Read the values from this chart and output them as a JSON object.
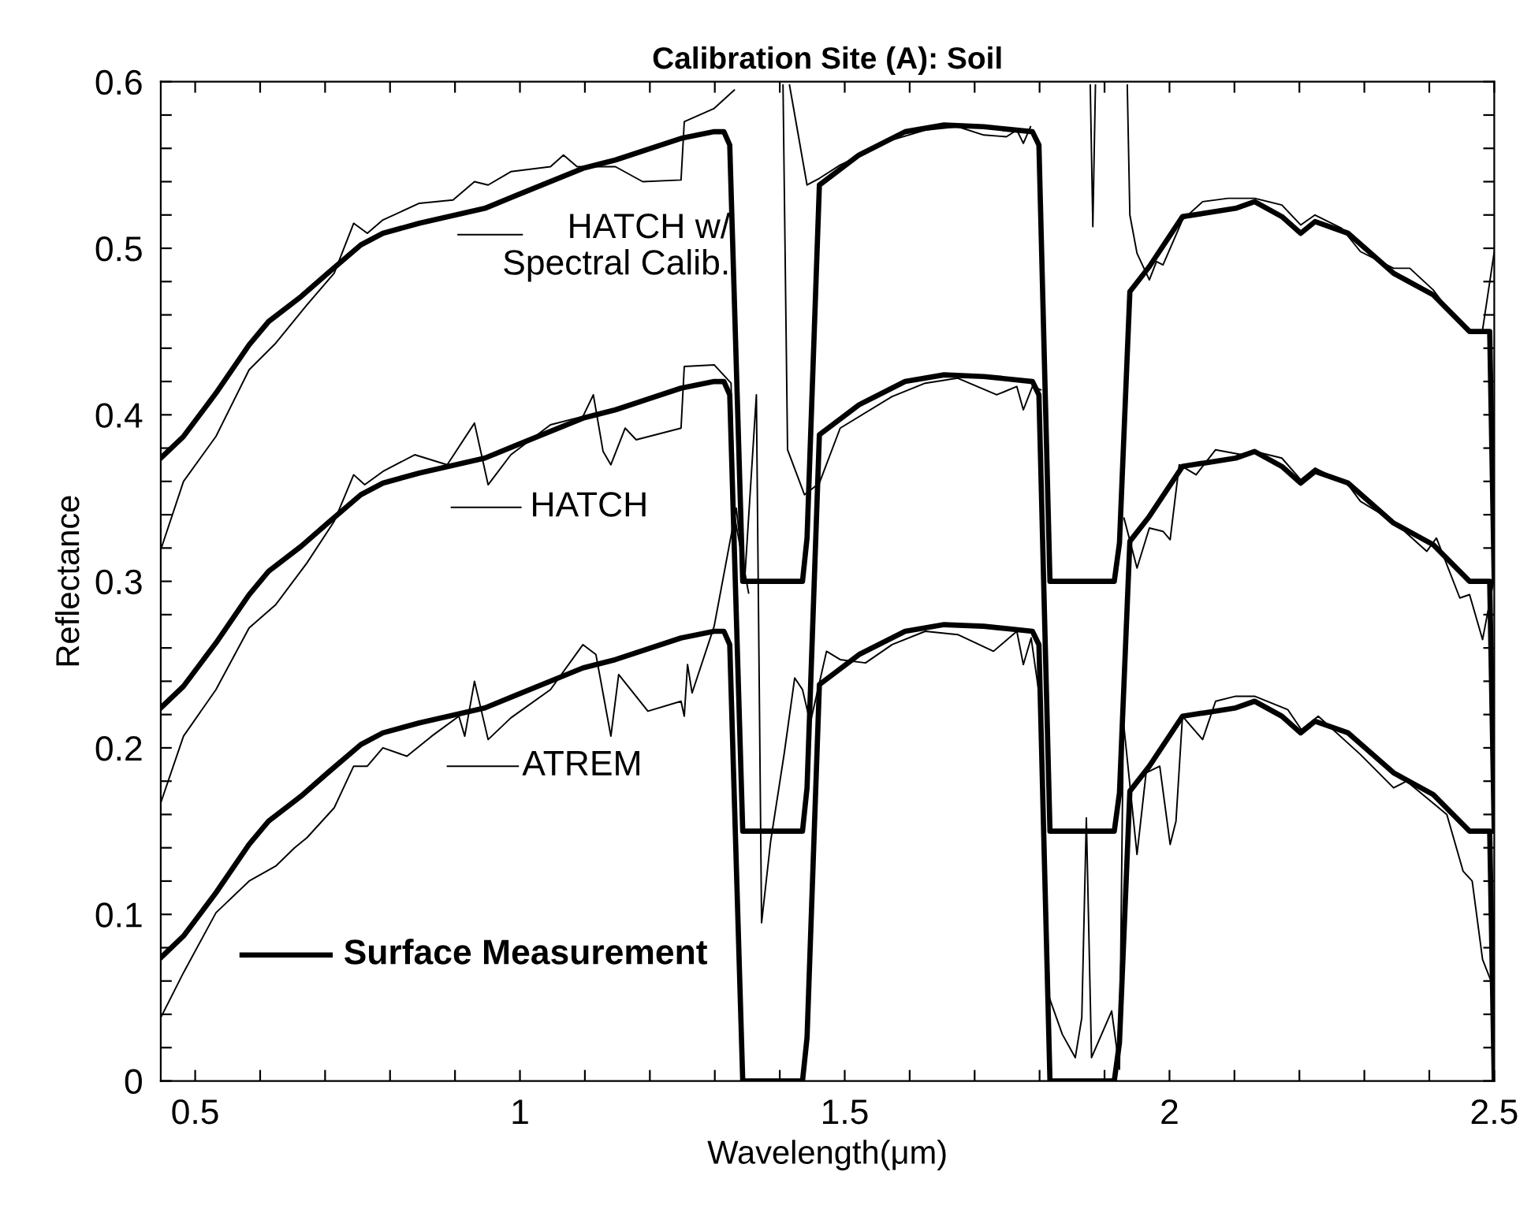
{
  "chart_data": {
    "type": "line",
    "title": "Calibration Site (A): Soil",
    "xlabel": "Wavelength(μm)",
    "ylabel": "Reflectance",
    "xlim": [
      0.447,
      2.5
    ],
    "ylim": [
      0,
      0.6
    ],
    "xticks": [
      0.5,
      {
        "value": 0.6,
        "label": null
      },
      {
        "value": 0.7,
        "label": null
      },
      {
        "value": 0.8,
        "label": null
      },
      {
        "value": 0.9,
        "label": null
      },
      1,
      {
        "value": 1.1,
        "label": null
      },
      {
        "value": 1.2,
        "label": null
      },
      {
        "value": 1.3,
        "label": null
      },
      {
        "value": 1.4,
        "label": null
      },
      1.5,
      {
        "value": 1.6,
        "label": null
      },
      {
        "value": 1.7,
        "label": null
      },
      {
        "value": 1.8,
        "label": null
      },
      {
        "value": 1.9,
        "label": null
      },
      2,
      {
        "value": 2.1,
        "label": null
      },
      {
        "value": 2.2,
        "label": null
      },
      {
        "value": 2.3,
        "label": null
      },
      {
        "value": 2.4,
        "label": null
      },
      2.5
    ],
    "yticks": [
      0,
      {
        "value": 0.02,
        "label": null
      },
      {
        "value": 0.04,
        "label": null
      },
      {
        "value": 0.06,
        "label": null
      },
      {
        "value": 0.08,
        "label": null
      },
      0.1,
      {
        "value": 0.12,
        "label": null
      },
      {
        "value": 0.14,
        "label": null
      },
      {
        "value": 0.16,
        "label": null
      },
      {
        "value": 0.18,
        "label": null
      },
      0.2,
      {
        "value": 0.22,
        "label": null
      },
      {
        "value": 0.24,
        "label": null
      },
      {
        "value": 0.26,
        "label": null
      },
      {
        "value": 0.28,
        "label": null
      },
      0.3,
      {
        "value": 0.32,
        "label": null
      },
      {
        "value": 0.34,
        "label": null
      },
      {
        "value": 0.36,
        "label": null
      },
      {
        "value": 0.38,
        "label": null
      },
      0.4,
      {
        "value": 0.42,
        "label": null
      },
      {
        "value": 0.44,
        "label": null
      },
      {
        "value": 0.46,
        "label": null
      },
      {
        "value": 0.48,
        "label": null
      },
      0.5,
      {
        "value": 0.52,
        "label": null
      },
      {
        "value": 0.54,
        "label": null
      },
      {
        "value": 0.56,
        "label": null
      },
      {
        "value": 0.58,
        "label": null
      },
      0.6
    ],
    "grid": false,
    "legend": "left",
    "marker": "none",
    "line_style": "solid",
    "series": [
      {
        "name": "HATCH w/\nSpectral Calib.",
        "color": "#000000",
        "x": [
          0.447,
          0.482,
          0.532,
          0.583,
          0.624,
          0.672,
          0.714,
          0.744,
          0.765,
          0.789,
          0.845,
          0.897,
          0.93,
          0.951,
          0.986,
          1.047,
          1.067,
          1.088,
          1.147,
          1.189,
          1.248,
          1.253,
          1.299,
          1.33,
          1.38,
          1.415,
          1.442,
          1.461,
          1.493,
          1.573,
          1.624,
          1.674,
          1.714,
          1.749,
          1.765,
          1.775,
          1.786,
          1.83,
          1.878,
          1.882,
          1.886,
          1.91,
          1.935,
          1.939,
          1.95,
          1.969,
          1.98,
          1.99,
          2.02,
          2.051,
          2.09,
          2.131,
          2.173,
          2.202,
          2.224,
          2.265,
          2.294,
          2.345,
          2.37,
          2.406,
          2.437,
          2.466,
          2.482,
          2.5
        ],
        "values": [
          0.319,
          0.36,
          0.387,
          0.427,
          0.443,
          0.466,
          0.485,
          0.515,
          0.509,
          0.517,
          0.527,
          0.529,
          0.54,
          0.538,
          0.546,
          0.549,
          0.556,
          0.549,
          0.549,
          0.54,
          0.541,
          0.576,
          0.584,
          0.595,
          null,
          0.598,
          0.538,
          0.542,
          0.55,
          0.565,
          0.571,
          0.573,
          0.568,
          0.567,
          0.571,
          0.563,
          0.573,
          null,
          0.598,
          0.513,
          0.598,
          null,
          0.598,
          0.52,
          0.497,
          0.481,
          0.492,
          0.49,
          0.517,
          0.528,
          0.53,
          0.53,
          0.526,
          0.514,
          0.52,
          0.512,
          0.498,
          0.488,
          0.488,
          0.475,
          0.459,
          0.449,
          0.451,
          0.498
        ]
      },
      {
        "name": "HATCH",
        "color": "#000000",
        "x": [
          0.447,
          0.482,
          0.532,
          0.583,
          0.624,
          0.672,
          0.714,
          0.744,
          0.761,
          0.789,
          0.838,
          0.888,
          0.93,
          0.951,
          0.986,
          1.047,
          1.097,
          1.113,
          1.128,
          1.14,
          1.162,
          1.179,
          1.248,
          1.253,
          1.299,
          1.325,
          1.33,
          1.352,
          1.38,
          1.405,
          1.412,
          1.438,
          1.461,
          1.493,
          1.573,
          1.624,
          1.674,
          1.734,
          1.765,
          1.775,
          1.789,
          1.802,
          1.86,
          1.93,
          1.95,
          1.969,
          1.99,
          2.001,
          2.015,
          2.041,
          2.071,
          2.112,
          2.131,
          2.173,
          2.202,
          2.224,
          2.275,
          2.294,
          2.345,
          2.396,
          2.411,
          2.447,
          2.462,
          2.482,
          2.498
        ],
        "values": [
          0.167,
          0.207,
          0.235,
          0.272,
          0.286,
          0.311,
          0.336,
          0.364,
          0.358,
          0.366,
          0.376,
          0.37,
          0.395,
          0.358,
          0.376,
          0.394,
          0.399,
          0.412,
          0.378,
          0.37,
          0.392,
          0.385,
          0.392,
          0.429,
          0.43,
          0.419,
          0.34,
          0.293,
          null,
          0.598,
          0.379,
          0.352,
          0.359,
          0.392,
          0.411,
          0.419,
          0.422,
          0.412,
          0.417,
          0.403,
          0.417,
          0.415,
          null,
          0.338,
          0.308,
          0.332,
          0.33,
          0.325,
          0.37,
          0.364,
          0.379,
          0.376,
          0.378,
          0.374,
          0.361,
          0.368,
          0.358,
          0.348,
          0.336,
          0.318,
          0.326,
          0.29,
          0.292,
          0.265,
          0.298
        ]
      },
      {
        "name": "ATREM",
        "color": "#000000",
        "x": [
          0.447,
          0.482,
          0.532,
          0.583,
          0.624,
          0.653,
          0.672,
          0.714,
          0.744,
          0.765,
          0.789,
          0.826,
          0.864,
          0.906,
          0.915,
          0.93,
          0.951,
          0.986,
          1.047,
          1.097,
          1.117,
          1.14,
          1.152,
          1.197,
          1.248,
          1.253,
          1.258,
          1.265,
          1.299,
          1.333,
          1.346,
          1.364,
          1.372,
          1.386,
          1.407,
          1.423,
          1.435,
          1.447,
          1.472,
          1.493,
          1.532,
          1.573,
          1.624,
          1.674,
          1.729,
          1.765,
          1.775,
          1.787,
          1.803,
          1.815,
          1.835,
          1.855,
          1.865,
          1.872,
          1.88,
          1.911,
          1.923,
          1.929,
          1.95,
          1.964,
          1.985,
          2.001,
          2.01,
          2.02,
          2.051,
          2.071,
          2.102,
          2.131,
          2.182,
          2.203,
          2.229,
          2.294,
          2.345,
          2.365,
          2.427,
          2.452,
          2.466,
          2.482,
          2.498
        ],
        "values": [
          0.038,
          0.065,
          0.101,
          0.12,
          0.129,
          0.14,
          0.146,
          0.164,
          0.189,
          0.189,
          0.2,
          0.195,
          0.207,
          0.219,
          0.207,
          0.24,
          0.205,
          0.218,
          0.235,
          0.262,
          0.256,
          0.207,
          0.244,
          0.222,
          0.228,
          0.219,
          0.25,
          0.233,
          0.273,
          0.344,
          0.301,
          0.412,
          0.095,
          0.144,
          0.197,
          0.242,
          0.235,
          0.215,
          0.258,
          0.253,
          0.251,
          0.262,
          0.27,
          0.268,
          0.258,
          0.27,
          0.25,
          0.266,
          0.222,
          0.05,
          0.028,
          0.014,
          0.038,
          0.158,
          0.014,
          0.042,
          0.007,
          0.216,
          0.136,
          0.185,
          0.189,
          0.142,
          0.156,
          0.219,
          0.205,
          0.228,
          0.231,
          0.231,
          0.223,
          0.211,
          0.219,
          0.196,
          0.176,
          0.18,
          0.16,
          0.126,
          0.12,
          0.073,
          0.057
        ]
      },
      {
        "name": "Surface Measurement",
        "color": "#000000",
        "x": [
          0.447,
          0.482,
          0.532,
          0.583,
          0.613,
          0.663,
          0.704,
          0.755,
          0.789,
          0.845,
          0.946,
          0.996,
          1.097,
          1.147,
          1.248,
          1.299,
          1.314,
          1.323,
          1.343,
          1.435,
          1.442,
          1.461,
          1.522,
          1.593,
          1.653,
          1.714,
          1.789,
          1.799,
          1.816,
          1.915,
          1.923,
          1.939,
          1.969,
          2.02,
          2.102,
          2.131,
          2.173,
          2.202,
          2.224,
          2.275,
          2.345,
          2.406,
          2.462,
          2.493,
          2.5
        ],
        "values": [
          0.074,
          0.087,
          0.113,
          0.142,
          0.156,
          0.171,
          0.185,
          0.202,
          0.209,
          0.215,
          0.224,
          0.232,
          0.248,
          0.253,
          0.266,
          0.27,
          0.27,
          0.262,
          0,
          0,
          0.026,
          0.238,
          0.256,
          0.27,
          0.274,
          0.273,
          0.27,
          0.262,
          0,
          0,
          0.023,
          0.174,
          0.189,
          0.219,
          0.224,
          0.228,
          0.219,
          0.209,
          0.216,
          0.209,
          0.185,
          0.172,
          0.15,
          0.15,
          0.0
        ]
      },
      {
        "color": "#000000",
        "x": [
          0.447,
          0.482,
          0.532,
          0.583,
          0.613,
          0.663,
          0.704,
          0.755,
          0.789,
          0.845,
          0.946,
          0.996,
          1.097,
          1.147,
          1.248,
          1.299,
          1.314,
          1.323,
          1.343,
          1.435,
          1.442,
          1.461,
          1.522,
          1.593,
          1.653,
          1.714,
          1.789,
          1.799,
          1.816,
          1.915,
          1.923,
          1.939,
          1.969,
          2.02,
          2.102,
          2.131,
          2.173,
          2.202,
          2.224,
          2.275,
          2.345,
          2.406,
          2.462,
          2.493,
          2.5
        ],
        "values": [
          0.224,
          0.237,
          0.263,
          0.292,
          0.306,
          0.321,
          0.335,
          0.352,
          0.359,
          0.365,
          0.374,
          0.382,
          0.398,
          0.403,
          0.416,
          0.42,
          0.42,
          0.412,
          0.15,
          0.15,
          0.176,
          0.388,
          0.406,
          0.42,
          0.424,
          0.423,
          0.42,
          0.412,
          0.15,
          0.15,
          0.173,
          0.324,
          0.339,
          0.369,
          0.374,
          0.378,
          0.369,
          0.359,
          0.366,
          0.359,
          0.335,
          0.322,
          0.3,
          0.3,
          0.15
        ]
      },
      {
        "color": "#000000",
        "x": [
          0.447,
          0.482,
          0.532,
          0.583,
          0.613,
          0.663,
          0.704,
          0.755,
          0.789,
          0.845,
          0.946,
          0.996,
          1.097,
          1.147,
          1.248,
          1.299,
          1.314,
          1.323,
          1.343,
          1.435,
          1.442,
          1.461,
          1.522,
          1.593,
          1.653,
          1.714,
          1.789,
          1.799,
          1.816,
          1.915,
          1.923,
          1.939,
          1.969,
          2.02,
          2.102,
          2.131,
          2.173,
          2.202,
          2.224,
          2.275,
          2.345,
          2.406,
          2.462,
          2.493,
          2.5
        ],
        "values": [
          0.374,
          0.387,
          0.413,
          0.442,
          0.456,
          0.471,
          0.485,
          0.502,
          0.509,
          0.515,
          0.524,
          0.532,
          0.548,
          0.553,
          0.566,
          0.57,
          0.57,
          0.562,
          0.3,
          0.3,
          0.326,
          0.538,
          0.556,
          0.57,
          0.574,
          0.573,
          0.57,
          0.562,
          0.3,
          0.3,
          0.323,
          0.474,
          0.489,
          0.519,
          0.524,
          0.528,
          0.519,
          0.509,
          0.516,
          0.509,
          0.485,
          0.472,
          0.45,
          0.45,
          0.3
        ]
      }
    ]
  }
}
